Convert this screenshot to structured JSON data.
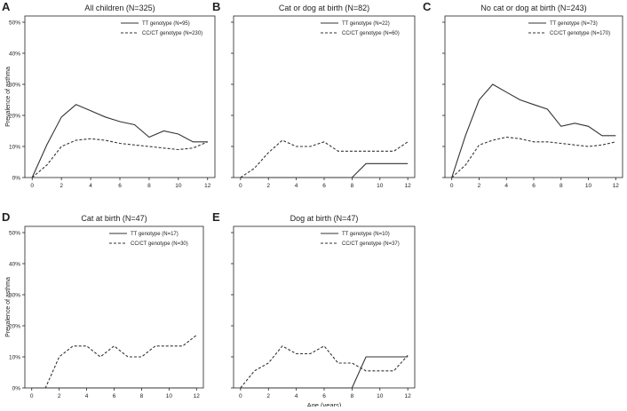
{
  "figure": {
    "y_axis_label": "Prevalence of asthma",
    "x_axis_label": "Age (years)"
  },
  "style": {
    "line_color": "#333333",
    "axis_color": "#222222",
    "text_color": "#222222"
  },
  "chart_data": [
    {
      "panel": "A",
      "type": "line",
      "title": "All children (N=325)",
      "x": [
        0,
        1,
        2,
        3,
        4,
        5,
        6,
        7,
        8,
        9,
        10,
        11,
        12
      ],
      "xticks": [
        "0",
        "2",
        "4",
        "6",
        "8",
        "10",
        "12"
      ],
      "yticks": [
        "0%",
        "10%",
        "20%",
        "30%",
        "40%",
        "50%"
      ],
      "ylim": [
        0,
        52
      ],
      "xlim": [
        -0.5,
        12.5
      ],
      "ylabel": "Prevalence of asthma",
      "xlabel": "",
      "series": [
        {
          "name": "TT genotype (N=95)",
          "dash": "solid",
          "values": [
            0,
            10.5,
            19.5,
            23.5,
            21.5,
            19.5,
            18,
            17,
            13,
            15,
            14,
            11.5,
            11.5
          ]
        },
        {
          "name": "CC/CT genotype (N=230)",
          "dash": "dashed",
          "values": [
            0,
            4,
            10,
            12,
            12.5,
            12,
            11,
            10.5,
            10,
            9.5,
            9,
            9.5,
            11.5
          ]
        }
      ],
      "legend": "top-right"
    },
    {
      "panel": "B",
      "type": "line",
      "title": "Cat or dog at birth (N=82)",
      "x": [
        0,
        1,
        2,
        3,
        4,
        5,
        6,
        7,
        8,
        9,
        10,
        11,
        12
      ],
      "xticks": [
        "0",
        "2",
        "4",
        "6",
        "8",
        "10",
        "12"
      ],
      "yticks": [],
      "ylim": [
        0,
        52
      ],
      "xlim": [
        -0.5,
        12.5
      ],
      "ylabel": "",
      "xlabel": "",
      "series": [
        {
          "name": "TT genotype (N=22)",
          "dash": "solid",
          "values": [
            0,
            0,
            0,
            0,
            0,
            0,
            0,
            0,
            0,
            4.5,
            4.5,
            4.5,
            4.5
          ]
        },
        {
          "name": "CC/CT genotype (N=60)",
          "dash": "dashed",
          "values": [
            0,
            3,
            8,
            12,
            10,
            10,
            11.5,
            8.5,
            8.5,
            8.5,
            8.5,
            8.5,
            11.5
          ]
        }
      ],
      "legend": "top-right"
    },
    {
      "panel": "C",
      "type": "line",
      "title": "No cat or dog at birth (N=243)",
      "x": [
        0,
        1,
        2,
        3,
        4,
        5,
        6,
        7,
        8,
        9,
        10,
        11,
        12
      ],
      "xticks": [
        "0",
        "2",
        "4",
        "6",
        "8",
        "10",
        "12"
      ],
      "yticks": [],
      "ylim": [
        0,
        52
      ],
      "xlim": [
        -0.5,
        12.5
      ],
      "ylabel": "",
      "xlabel": "",
      "series": [
        {
          "name": "TT genotype (N=73)",
          "dash": "solid",
          "values": [
            0,
            13.5,
            25,
            30,
            27.5,
            25,
            23.5,
            22,
            16.5,
            17.5,
            16.5,
            13.5,
            13.5
          ]
        },
        {
          "name": "CC/CT genotype (N=170)",
          "dash": "dashed",
          "values": [
            0,
            4,
            10.5,
            12,
            13,
            12.5,
            11.5,
            11.5,
            11,
            10.5,
            10,
            10.5,
            11.5
          ]
        }
      ],
      "legend": "top-right"
    },
    {
      "panel": "D",
      "type": "line",
      "title": "Cat at birth (N=47)",
      "x": [
        0,
        1,
        2,
        3,
        4,
        5,
        6,
        7,
        8,
        9,
        10,
        11,
        12
      ],
      "xticks": [
        "0",
        "2",
        "4",
        "6",
        "8",
        "10",
        "12"
      ],
      "yticks": [
        "0%",
        "10%",
        "20%",
        "30%",
        "40%",
        "50%"
      ],
      "ylim": [
        0,
        52
      ],
      "xlim": [
        -0.5,
        12.5
      ],
      "ylabel": "Prevalence of asthma",
      "xlabel": "",
      "series": [
        {
          "name": "TT genotype (N=17)",
          "dash": "solid",
          "values": [
            0,
            0,
            0,
            0,
            0,
            0,
            0,
            0,
            0,
            0,
            0,
            0,
            0
          ]
        },
        {
          "name": "CC/CT genotype (N=30)",
          "dash": "dashed",
          "values": [
            0,
            0,
            10,
            13.5,
            13.5,
            10,
            13.5,
            10,
            10,
            13.5,
            13.5,
            13.5,
            17
          ]
        }
      ],
      "legend": "top-right"
    },
    {
      "panel": "E",
      "type": "line",
      "title": "Dog at birth (N=47)",
      "x": [
        0,
        1,
        2,
        3,
        4,
        5,
        6,
        7,
        8,
        9,
        10,
        11,
        12
      ],
      "xticks": [
        "0",
        "2",
        "4",
        "6",
        "8",
        "10",
        "12"
      ],
      "yticks": [],
      "ylim": [
        0,
        52
      ],
      "xlim": [
        -0.5,
        12.5
      ],
      "ylabel": "",
      "xlabel": "Age (years)",
      "series": [
        {
          "name": "TT genotype (N=10)",
          "dash": "solid",
          "values": [
            0,
            0,
            0,
            0,
            0,
            0,
            0,
            0,
            0,
            10,
            10,
            10,
            10
          ]
        },
        {
          "name": "CC/CT genotype (N=37)",
          "dash": "dashed",
          "values": [
            0,
            5.5,
            8,
            13.5,
            11,
            11,
            13.5,
            8,
            8,
            5.5,
            5.5,
            5.5,
            10.5
          ]
        }
      ],
      "legend": "top-right"
    }
  ]
}
